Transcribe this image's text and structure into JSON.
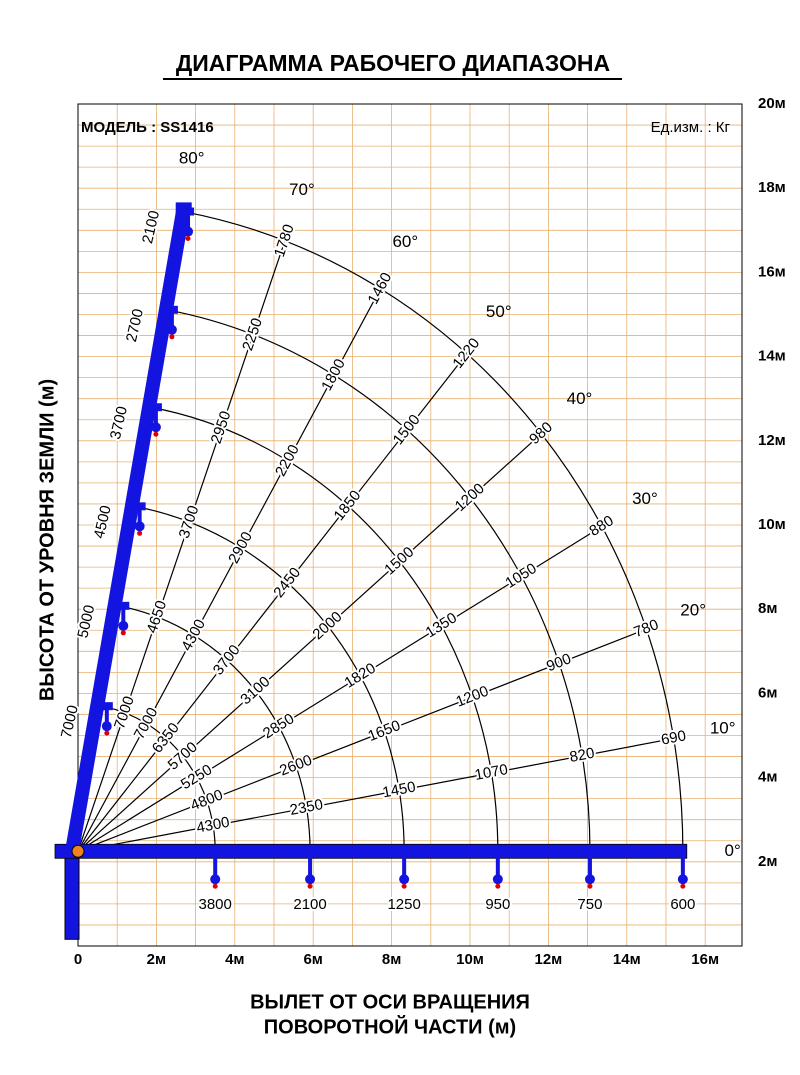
{
  "title": "ДИАГРАММА РАБОЧЕГО ДИАПАЗОНА",
  "model": "МОДЕЛЬ : SS1416",
  "unit": "Ед.изм. : Кг",
  "y_axis_label": "ВЫСОТА ОТ УРОВНЯ ЗЕМЛИ (м)",
  "x_axis_label": [
    "ВЫЛЕТ ОТ ОСИ ВРАЩЕНИЯ",
    "ПОВОРОТНОЙ ЧАСТИ (м)"
  ],
  "x_ticks": [
    "0",
    "2м",
    "4м",
    "6м",
    "8м",
    "10м",
    "12м",
    "14м",
    "16м"
  ],
  "y_ticks": [
    "20м",
    "18м",
    "16м",
    "14м",
    "12м",
    "10м",
    "8м",
    "6м",
    "4м",
    "2м"
  ],
  "angles": [
    {
      "label": "0°",
      "loads": [
        "3800",
        "2100",
        "1250",
        "950",
        "750",
        "600"
      ]
    },
    {
      "label": "10°",
      "loads": [
        "4300",
        "2350",
        "1450",
        "1070",
        "820",
        "690"
      ]
    },
    {
      "label": "20°",
      "loads": [
        "4800",
        "2600",
        "1650",
        "1200",
        "900",
        "780"
      ]
    },
    {
      "label": "30°",
      "loads": [
        "5250",
        "2850",
        "1820",
        "1350",
        "1050",
        "880"
      ]
    },
    {
      "label": "40°",
      "loads": [
        "5700",
        "3100",
        "2000",
        "1500",
        "1200",
        "980"
      ]
    },
    {
      "label": "50°",
      "loads": [
        "6350",
        "3700",
        "2450",
        "1850",
        "1500",
        "1220"
      ]
    },
    {
      "label": "60°",
      "loads": [
        "7000",
        "4300",
        "2900",
        "2200",
        "1800",
        "1460"
      ]
    },
    {
      "label": "70°",
      "loads": [
        "7000",
        "4650",
        "3700",
        "2950",
        "2250",
        "1780"
      ]
    },
    {
      "label": "80°",
      "loads": [
        "7000",
        "5000",
        "4500",
        "3700",
        "2700",
        "2100"
      ]
    }
  ]
}
